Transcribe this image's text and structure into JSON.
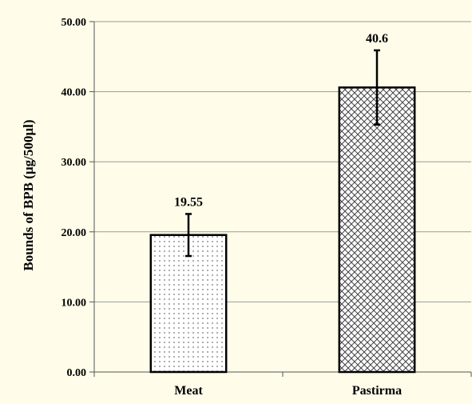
{
  "chart_data": {
    "type": "bar",
    "categories": [
      "Meat",
      "Pastirma"
    ],
    "values": [
      19.55,
      40.6
    ],
    "value_labels": [
      "19.55",
      "40.6"
    ],
    "errors": [
      3.0,
      5.3
    ],
    "patterns": [
      "dots",
      "crosshatch"
    ],
    "title": "",
    "xlabel": "",
    "ylabel": "Bounds of BPB (µg/500µl)",
    "ylim": [
      0,
      50
    ],
    "yticks": [
      0,
      10,
      20,
      30,
      40,
      50
    ],
    "ytick_labels": [
      "0.00",
      "10.00",
      "20.00",
      "30.00",
      "40.00",
      "50.00"
    ],
    "grid": true,
    "colors": {
      "background": "#fffde9",
      "grid": "#9a9a9a",
      "bar_fill": "#ffffff",
      "ink": "#000000"
    }
  }
}
